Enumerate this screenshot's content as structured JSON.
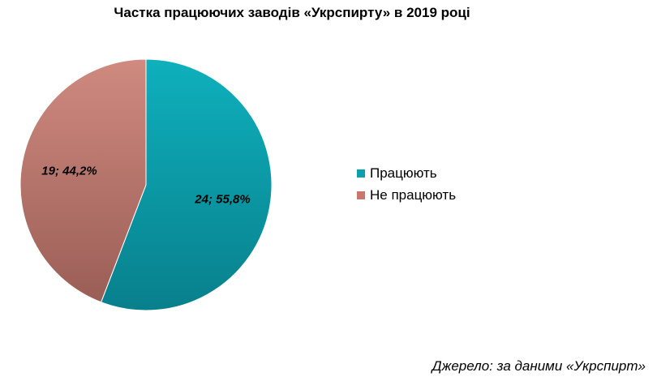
{
  "chart_data": {
    "type": "pie",
    "title": "Частка працюючих заводів «Укрспирту» в 2019 році",
    "legend_position": "right",
    "slices": [
      {
        "name": "Працюють",
        "value": 24,
        "percent": 55.8,
        "label": "24; 55,8%",
        "color": "#0aa0ad"
      },
      {
        "name": "Не працюють",
        "value": 19,
        "percent": 44.2,
        "label": "19; 44,2%",
        "color": "#c9776d"
      }
    ]
  },
  "legend": {
    "items": [
      {
        "label": "Працюють",
        "color": "#0aa0ad"
      },
      {
        "label": "Не працюють",
        "color": "#c9776d"
      }
    ]
  },
  "source_note": "Джерело: за даними «Укрспирт»"
}
